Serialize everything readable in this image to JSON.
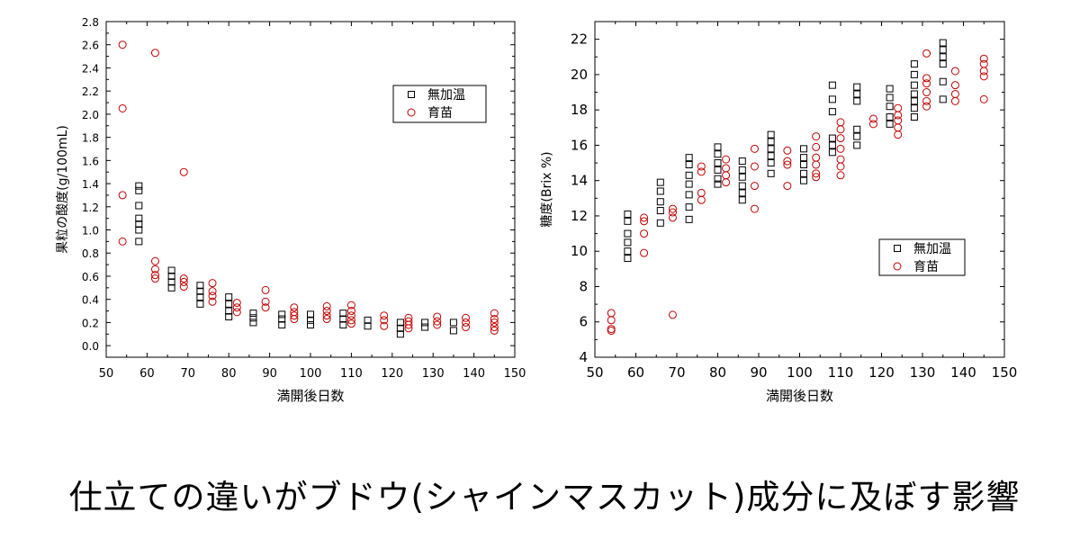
{
  "caption": "仕立ての違いがブドウ(シャインマスカット)成分に及ぼす影響",
  "colors": {
    "series1": "#000000",
    "series2": "#c00000"
  },
  "chart_data": [
    {
      "type": "scatter",
      "xlabel": "満開後日数",
      "ylabel": "果粒の酸度(g/100mL)",
      "xlim": [
        50,
        150
      ],
      "ylim": [
        -0.1,
        2.8
      ],
      "xticks": [
        50,
        60,
        70,
        80,
        90,
        100,
        110,
        120,
        130,
        140,
        150
      ],
      "yticks": [
        0.0,
        0.2,
        0.4,
        0.6,
        0.8,
        1.0,
        1.2,
        1.4,
        1.6,
        1.8,
        2.0,
        2.2,
        2.4,
        2.6,
        2.8
      ],
      "legend_position": "top-right",
      "grid": false,
      "series": [
        {
          "name": "無加温",
          "marker": "square",
          "points": [
            [
              58,
              1.38
            ],
            [
              58,
              1.34
            ],
            [
              58,
              1.21
            ],
            [
              58,
              1.1
            ],
            [
              58,
              1.05
            ],
            [
              58,
              1.0
            ],
            [
              58,
              0.9
            ],
            [
              66,
              0.65
            ],
            [
              66,
              0.6
            ],
            [
              66,
              0.55
            ],
            [
              66,
              0.5
            ],
            [
              73,
              0.52
            ],
            [
              73,
              0.47
            ],
            [
              73,
              0.42
            ],
            [
              73,
              0.36
            ],
            [
              80,
              0.42
            ],
            [
              80,
              0.36
            ],
            [
              80,
              0.3
            ],
            [
              80,
              0.25
            ],
            [
              86,
              0.28
            ],
            [
              86,
              0.24
            ],
            [
              86,
              0.2
            ],
            [
              93,
              0.27
            ],
            [
              93,
              0.23
            ],
            [
              93,
              0.18
            ],
            [
              100,
              0.27
            ],
            [
              100,
              0.22
            ],
            [
              100,
              0.18
            ],
            [
              108,
              0.28
            ],
            [
              108,
              0.23
            ],
            [
              108,
              0.18
            ],
            [
              114,
              0.22
            ],
            [
              114,
              0.17
            ],
            [
              122,
              0.2
            ],
            [
              122,
              0.15
            ],
            [
              122,
              0.1
            ],
            [
              128,
              0.2
            ],
            [
              128,
              0.16
            ],
            [
              135,
              0.2
            ],
            [
              135,
              0.13
            ]
          ]
        },
        {
          "name": "育苗",
          "marker": "circle",
          "points": [
            [
              54,
              2.6
            ],
            [
              54,
              2.05
            ],
            [
              54,
              1.3
            ],
            [
              54,
              0.9
            ],
            [
              62,
              2.53
            ],
            [
              62,
              0.73
            ],
            [
              62,
              0.66
            ],
            [
              62,
              0.61
            ],
            [
              62,
              0.58
            ],
            [
              69,
              1.5
            ],
            [
              69,
              0.58
            ],
            [
              69,
              0.55
            ],
            [
              69,
              0.51
            ],
            [
              76,
              0.54
            ],
            [
              76,
              0.47
            ],
            [
              76,
              0.43
            ],
            [
              76,
              0.38
            ],
            [
              82,
              0.37
            ],
            [
              82,
              0.33
            ],
            [
              82,
              0.29
            ],
            [
              89,
              0.48
            ],
            [
              89,
              0.38
            ],
            [
              89,
              0.33
            ],
            [
              96,
              0.33
            ],
            [
              96,
              0.29
            ],
            [
              96,
              0.26
            ],
            [
              96,
              0.23
            ],
            [
              104,
              0.34
            ],
            [
              104,
              0.3
            ],
            [
              104,
              0.26
            ],
            [
              104,
              0.23
            ],
            [
              110,
              0.35
            ],
            [
              110,
              0.3
            ],
            [
              110,
              0.26
            ],
            [
              110,
              0.22
            ],
            [
              110,
              0.19
            ],
            [
              118,
              0.26
            ],
            [
              118,
              0.22
            ],
            [
              118,
              0.17
            ],
            [
              124,
              0.24
            ],
            [
              124,
              0.21
            ],
            [
              124,
              0.18
            ],
            [
              124,
              0.15
            ],
            [
              131,
              0.25
            ],
            [
              131,
              0.21
            ],
            [
              131,
              0.18
            ],
            [
              138,
              0.24
            ],
            [
              138,
              0.2
            ],
            [
              138,
              0.16
            ],
            [
              145,
              0.28
            ],
            [
              145,
              0.23
            ],
            [
              145,
              0.2
            ],
            [
              145,
              0.16
            ],
            [
              145,
              0.13
            ]
          ]
        }
      ]
    },
    {
      "type": "scatter",
      "xlabel": "満開後日数",
      "ylabel": "糖度(Brix %)",
      "xlim": [
        50,
        150
      ],
      "ylim": [
        4,
        23
      ],
      "xticks": [
        50,
        60,
        70,
        80,
        90,
        100,
        110,
        120,
        130,
        140,
        150
      ],
      "yticks": [
        4,
        6,
        8,
        10,
        12,
        14,
        16,
        18,
        20,
        22
      ],
      "legend_position": "center-right",
      "grid": false,
      "series": [
        {
          "name": "無加温",
          "marker": "square",
          "points": [
            [
              58,
              12.1
            ],
            [
              58,
              11.7
            ],
            [
              58,
              11.0
            ],
            [
              58,
              10.5
            ],
            [
              58,
              10.0
            ],
            [
              58,
              9.6
            ],
            [
              66,
              13.9
            ],
            [
              66,
              13.4
            ],
            [
              66,
              12.8
            ],
            [
              66,
              12.3
            ],
            [
              66,
              11.6
            ],
            [
              73,
              15.3
            ],
            [
              73,
              14.9
            ],
            [
              73,
              14.3
            ],
            [
              73,
              13.8
            ],
            [
              73,
              13.2
            ],
            [
              73,
              12.5
            ],
            [
              73,
              11.8
            ],
            [
              80,
              15.9
            ],
            [
              80,
              15.5
            ],
            [
              80,
              15.0
            ],
            [
              80,
              14.6
            ],
            [
              80,
              14.1
            ],
            [
              80,
              13.8
            ],
            [
              86,
              15.1
            ],
            [
              86,
              14.6
            ],
            [
              86,
              14.2
            ],
            [
              86,
              13.7
            ],
            [
              86,
              13.3
            ],
            [
              86,
              12.9
            ],
            [
              93,
              16.6
            ],
            [
              93,
              16.2
            ],
            [
              93,
              15.8
            ],
            [
              93,
              15.4
            ],
            [
              93,
              15.0
            ],
            [
              93,
              14.4
            ],
            [
              101,
              15.8
            ],
            [
              101,
              15.3
            ],
            [
              101,
              14.9
            ],
            [
              101,
              14.4
            ],
            [
              101,
              14.0
            ],
            [
              108,
              19.4
            ],
            [
              108,
              18.6
            ],
            [
              108,
              17.9
            ],
            [
              108,
              16.4
            ],
            [
              108,
              16.0
            ],
            [
              108,
              15.6
            ],
            [
              114,
              19.3
            ],
            [
              114,
              18.9
            ],
            [
              114,
              18.5
            ],
            [
              114,
              16.9
            ],
            [
              114,
              16.5
            ],
            [
              114,
              16.0
            ],
            [
              122,
              19.2
            ],
            [
              122,
              18.7
            ],
            [
              122,
              18.2
            ],
            [
              122,
              17.6
            ],
            [
              122,
              17.2
            ],
            [
              128,
              20.6
            ],
            [
              128,
              20.0
            ],
            [
              128,
              19.4
            ],
            [
              128,
              18.9
            ],
            [
              128,
              18.5
            ],
            [
              128,
              18.1
            ],
            [
              128,
              17.6
            ],
            [
              135,
              21.8
            ],
            [
              135,
              21.4
            ],
            [
              135,
              21.0
            ],
            [
              135,
              20.6
            ],
            [
              135,
              19.6
            ],
            [
              135,
              18.6
            ]
          ]
        },
        {
          "name": "育苗",
          "marker": "circle",
          "points": [
            [
              54,
              6.5
            ],
            [
              54,
              6.1
            ],
            [
              54,
              5.6
            ],
            [
              54,
              5.5
            ],
            [
              62,
              11.9
            ],
            [
              62,
              11.7
            ],
            [
              62,
              11.0
            ],
            [
              62,
              9.9
            ],
            [
              69,
              12.4
            ],
            [
              69,
              12.2
            ],
            [
              69,
              11.9
            ],
            [
              69,
              6.4
            ],
            [
              76,
              14.8
            ],
            [
              76,
              14.5
            ],
            [
              76,
              13.3
            ],
            [
              76,
              12.9
            ],
            [
              82,
              15.2
            ],
            [
              82,
              14.7
            ],
            [
              82,
              14.3
            ],
            [
              82,
              13.9
            ],
            [
              89,
              15.8
            ],
            [
              89,
              14.8
            ],
            [
              89,
              13.7
            ],
            [
              89,
              12.4
            ],
            [
              97,
              15.7
            ],
            [
              97,
              15.1
            ],
            [
              97,
              14.9
            ],
            [
              97,
              13.7
            ],
            [
              104,
              16.5
            ],
            [
              104,
              15.9
            ],
            [
              104,
              15.3
            ],
            [
              104,
              14.9
            ],
            [
              104,
              14.4
            ],
            [
              104,
              14.2
            ],
            [
              110,
              17.3
            ],
            [
              110,
              16.9
            ],
            [
              110,
              16.4
            ],
            [
              110,
              15.8
            ],
            [
              110,
              15.2
            ],
            [
              110,
              14.8
            ],
            [
              110,
              14.3
            ],
            [
              118,
              17.5
            ],
            [
              118,
              17.2
            ],
            [
              124,
              18.1
            ],
            [
              124,
              17.7
            ],
            [
              124,
              17.4
            ],
            [
              124,
              17.0
            ],
            [
              124,
              16.6
            ],
            [
              131,
              21.2
            ],
            [
              131,
              19.8
            ],
            [
              131,
              19.5
            ],
            [
              131,
              19.0
            ],
            [
              131,
              18.5
            ],
            [
              131,
              18.2
            ],
            [
              138,
              20.2
            ],
            [
              138,
              19.4
            ],
            [
              138,
              18.9
            ],
            [
              138,
              18.5
            ],
            [
              145,
              20.9
            ],
            [
              145,
              20.6
            ],
            [
              145,
              20.2
            ],
            [
              145,
              19.9
            ],
            [
              145,
              18.6
            ]
          ]
        }
      ]
    }
  ]
}
